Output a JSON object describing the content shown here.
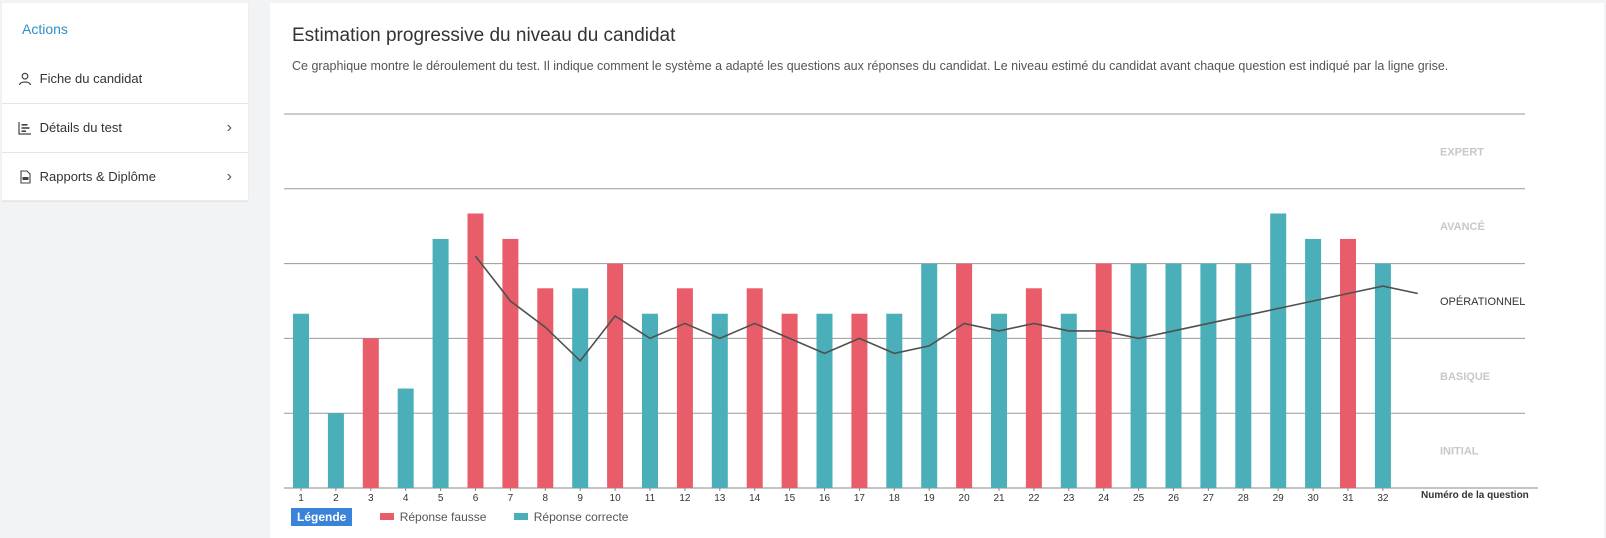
{
  "sidebar": {
    "title": "Actions",
    "items": [
      {
        "label": "Fiche du candidat",
        "icon": "user-icon"
      },
      {
        "label": "Détails du test",
        "icon": "bar-chart-icon"
      },
      {
        "label": "Rapports & Diplôme",
        "icon": "pdf-file-icon"
      }
    ]
  },
  "main": {
    "title": "Estimation progressive du niveau du candidat",
    "description": "Ce graphique montre le déroulement du test. Il indique comment le système a adapté les questions aux réponses du candidat. Le niveau estimé du candidat avant chaque question est indiqué par la ligne grise."
  },
  "legend": {
    "badge": "Légende",
    "wrong_label": "Réponse fausse",
    "correct_label": "Réponse correcte"
  },
  "colors": {
    "correct": "#4aafb8",
    "wrong": "#e85d69",
    "estimate_line": "#505050",
    "highlight_level": "#333333",
    "muted_level": "#c8c8c8"
  },
  "chart_data": {
    "type": "bar",
    "xlabel": "Numéro de la question",
    "categories": [
      "1",
      "2",
      "3",
      "4",
      "5",
      "6",
      "7",
      "8",
      "9",
      "10",
      "11",
      "12",
      "13",
      "14",
      "15",
      "16",
      "17",
      "18",
      "19",
      "20",
      "21",
      "22",
      "23",
      "24",
      "25",
      "26",
      "27",
      "28",
      "29",
      "30",
      "31",
      "32"
    ],
    "values": [
      2.33,
      1.0,
      2.0,
      1.33,
      3.33,
      3.67,
      3.33,
      2.67,
      2.67,
      3.0,
      2.33,
      2.67,
      2.33,
      2.67,
      2.33,
      2.33,
      2.33,
      2.33,
      3.0,
      3.0,
      2.33,
      2.67,
      2.33,
      3.0,
      3.0,
      3.0,
      3.0,
      3.0,
      3.67,
      3.33,
      3.33,
      3.0
    ],
    "correct": [
      true,
      true,
      false,
      true,
      true,
      false,
      false,
      false,
      true,
      false,
      true,
      false,
      true,
      false,
      false,
      true,
      false,
      true,
      true,
      false,
      true,
      false,
      true,
      false,
      true,
      true,
      true,
      true,
      true,
      true,
      false,
      true
    ],
    "estimate_line": {
      "start_index": 5,
      "values": [
        3.1,
        2.5,
        2.15,
        1.7,
        2.3,
        2.0,
        2.2,
        2.0,
        2.2,
        2.0,
        1.8,
        2.0,
        1.8,
        1.9,
        2.2,
        2.1,
        2.2,
        2.1,
        2.1,
        2.0,
        2.1,
        2.2,
        2.3,
        2.4,
        2.5,
        2.6,
        2.7,
        2.6
      ]
    },
    "levels": [
      "INITIAL",
      "BASIQUE",
      "OPÉRATIONNEL",
      "AVANCÉ",
      "EXPERT"
    ],
    "highlighted_level": "OPÉRATIONNEL",
    "ylim": [
      0,
      5
    ],
    "grid": true
  }
}
